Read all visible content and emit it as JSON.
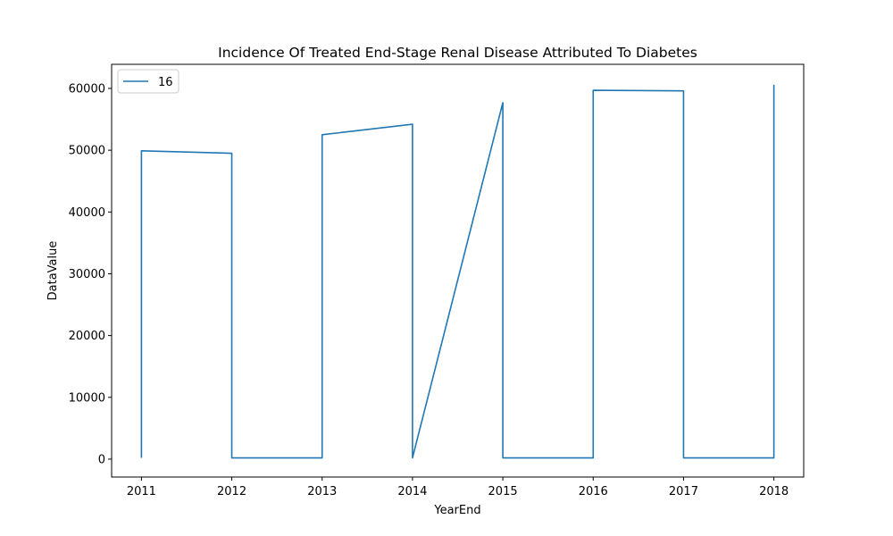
{
  "chart_data": {
    "type": "line",
    "title": "Incidence Of Treated End-Stage Renal Disease Attributed To Diabetes",
    "xlabel": "YearEnd",
    "ylabel": "DataValue",
    "xlim": [
      2010.67,
      2018.33
    ],
    "ylim": [
      -2900,
      63900
    ],
    "x_ticks": [
      2011,
      2012,
      2013,
      2014,
      2015,
      2016,
      2017,
      2018
    ],
    "y_ticks": [
      0,
      10000,
      20000,
      30000,
      40000,
      50000,
      60000
    ],
    "grid": false,
    "legend": "top-left",
    "series": [
      {
        "name": "16",
        "color": "#1f77b4",
        "x": [
          2011,
          2011,
          2012,
          2012,
          2013,
          2013,
          2014,
          2014,
          2015,
          2015,
          2016,
          2016,
          2017,
          2017,
          2018,
          2018
        ],
        "y": [
          200,
          49900,
          49500,
          200,
          200,
          52500,
          54200,
          200,
          57700,
          200,
          200,
          59700,
          59600,
          200,
          200,
          60600
        ]
      }
    ]
  }
}
